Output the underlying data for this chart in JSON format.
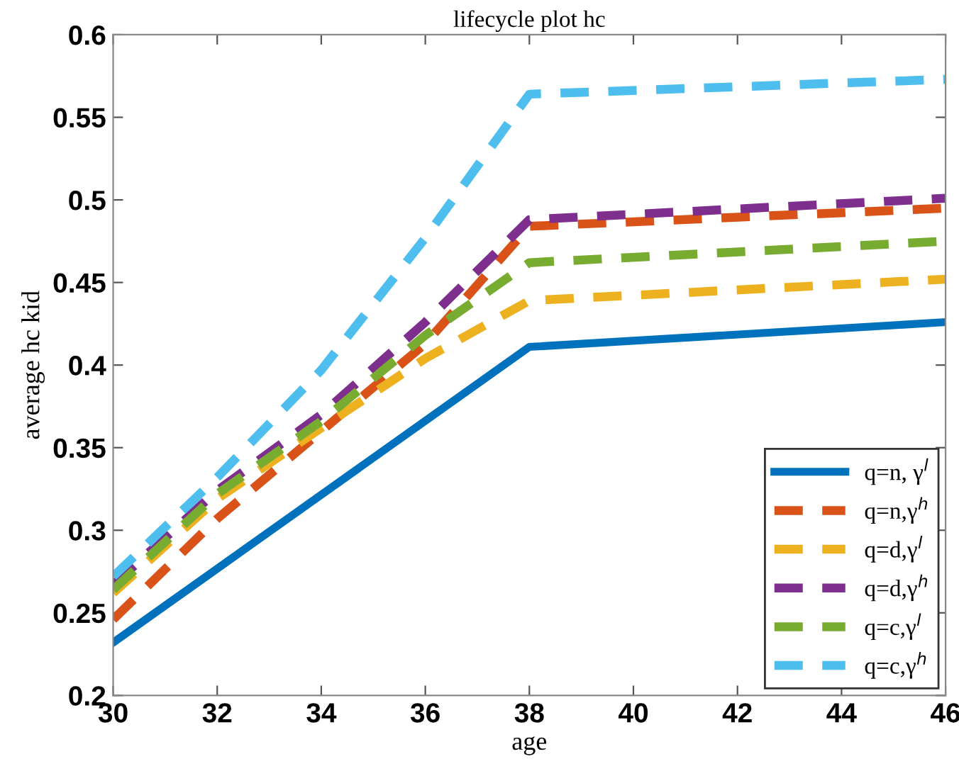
{
  "chart_data": {
    "type": "line",
    "title": "lifecycle plot hc",
    "xlabel": "age",
    "ylabel": "average hc kid",
    "xlim": [
      30,
      46
    ],
    "xticks": [
      30,
      32,
      34,
      36,
      38,
      40,
      42,
      44,
      46
    ],
    "ylim": [
      0.2,
      0.6
    ],
    "yticks": [
      0.2,
      0.25,
      0.3,
      0.35,
      0.4,
      0.45,
      0.5,
      0.55,
      0.6
    ],
    "grid": false,
    "legend": "bottom right",
    "marker": "none",
    "series": [
      {
        "name": "q=n, γ$^{l}$",
        "color": "#0072bd",
        "line_style": "solid",
        "x": [
          30,
          38,
          46
        ],
        "values": [
          0.232,
          0.411,
          0.426
        ]
      },
      {
        "name": "q=n,γ$^{h}$",
        "color": "#d95319",
        "line_style": "dashed",
        "x": [
          30,
          32,
          34,
          36,
          38,
          46
        ],
        "values": [
          0.246,
          0.307,
          0.36,
          0.413,
          0.484,
          0.495
        ]
      },
      {
        "name": "q=d,γ$^{l}$",
        "color": "#edb120",
        "line_style": "dashed",
        "x": [
          30,
          32,
          34,
          36,
          38,
          46
        ],
        "values": [
          0.262,
          0.319,
          0.362,
          0.404,
          0.439,
          0.452
        ]
      },
      {
        "name": "q=d,γ$^{h}$",
        "color": "#7e2f8e",
        "line_style": "dashed",
        "x": [
          30,
          32,
          34,
          36,
          38,
          46
        ],
        "values": [
          0.267,
          0.324,
          0.37,
          0.426,
          0.488,
          0.501
        ]
      },
      {
        "name": "q=c,γ$^{l}$",
        "color": "#77ac30",
        "line_style": "dashed",
        "x": [
          30,
          32,
          34,
          36,
          38,
          46
        ],
        "values": [
          0.264,
          0.322,
          0.366,
          0.418,
          0.462,
          0.475
        ]
      },
      {
        "name": "q=c,γ$^{h}$",
        "color": "#4dbeee",
        "line_style": "dashed",
        "x": [
          30,
          32,
          34,
          36,
          38,
          46
        ],
        "values": [
          0.272,
          0.332,
          0.397,
          0.477,
          0.564,
          0.573
        ]
      }
    ]
  }
}
